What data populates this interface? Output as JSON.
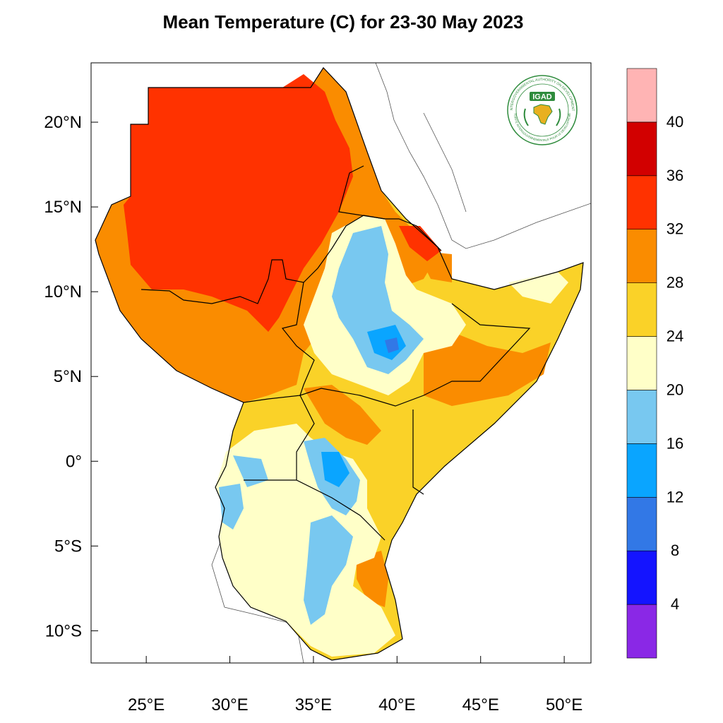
{
  "title": "Mean Temperature (C) for 23-30 May 2023",
  "logo": {
    "text": "IGAD",
    "ring_text": "INTERGOVERNMENTAL AUTHORITY ON DEVELOPMENT",
    "ring_text_fr": "AUTORITÉ INTERGOUVERNEMENTALE POUR LE DÉVELOPPEMENT"
  },
  "axes": {
    "lon_ticks": [
      {
        "value": 25,
        "label": "25°E"
      },
      {
        "value": 30,
        "label": "30°E"
      },
      {
        "value": 35,
        "label": "35°E"
      },
      {
        "value": 40,
        "label": "40°E"
      },
      {
        "value": 45,
        "label": "45°E"
      },
      {
        "value": 50,
        "label": "50°E"
      }
    ],
    "lat_ticks": [
      {
        "value": 20,
        "label": "20°N"
      },
      {
        "value": 15,
        "label": "15°N"
      },
      {
        "value": 10,
        "label": "10°N"
      },
      {
        "value": 5,
        "label": "5°N"
      },
      {
        "value": 0,
        "label": "0°"
      },
      {
        "value": -5,
        "label": "5°S"
      },
      {
        "value": -10,
        "label": "10°S"
      }
    ],
    "lon_range": [
      21.7,
      51.6
    ],
    "lat_range": [
      -11.9,
      23.5
    ]
  },
  "colorbar": {
    "bins": [
      {
        "label": "",
        "color": "#8a28e6"
      },
      {
        "label": "4",
        "color": "#1414ff"
      },
      {
        "label": "8",
        "color": "#3278e6"
      },
      {
        "label": "12",
        "color": "#0aa5ff"
      },
      {
        "label": "16",
        "color": "#78c8f0"
      },
      {
        "label": "20",
        "color": "#ffffc8"
      },
      {
        "label": "24",
        "color": "#fad228"
      },
      {
        "label": "28",
        "color": "#fa8c00"
      },
      {
        "label": "32",
        "color": "#ff3200"
      },
      {
        "label": "36",
        "color": "#d20000"
      },
      {
        "label": "40",
        "color": "#ffb4b4"
      }
    ]
  },
  "colors": {
    "very_hot": "#ff3200",
    "hot": "#fa8c00",
    "warm": "#fad228",
    "mild": "#ffffc8",
    "cool": "#78c8f0",
    "cold": "#0aa5ff",
    "colder": "#3278e6"
  }
}
